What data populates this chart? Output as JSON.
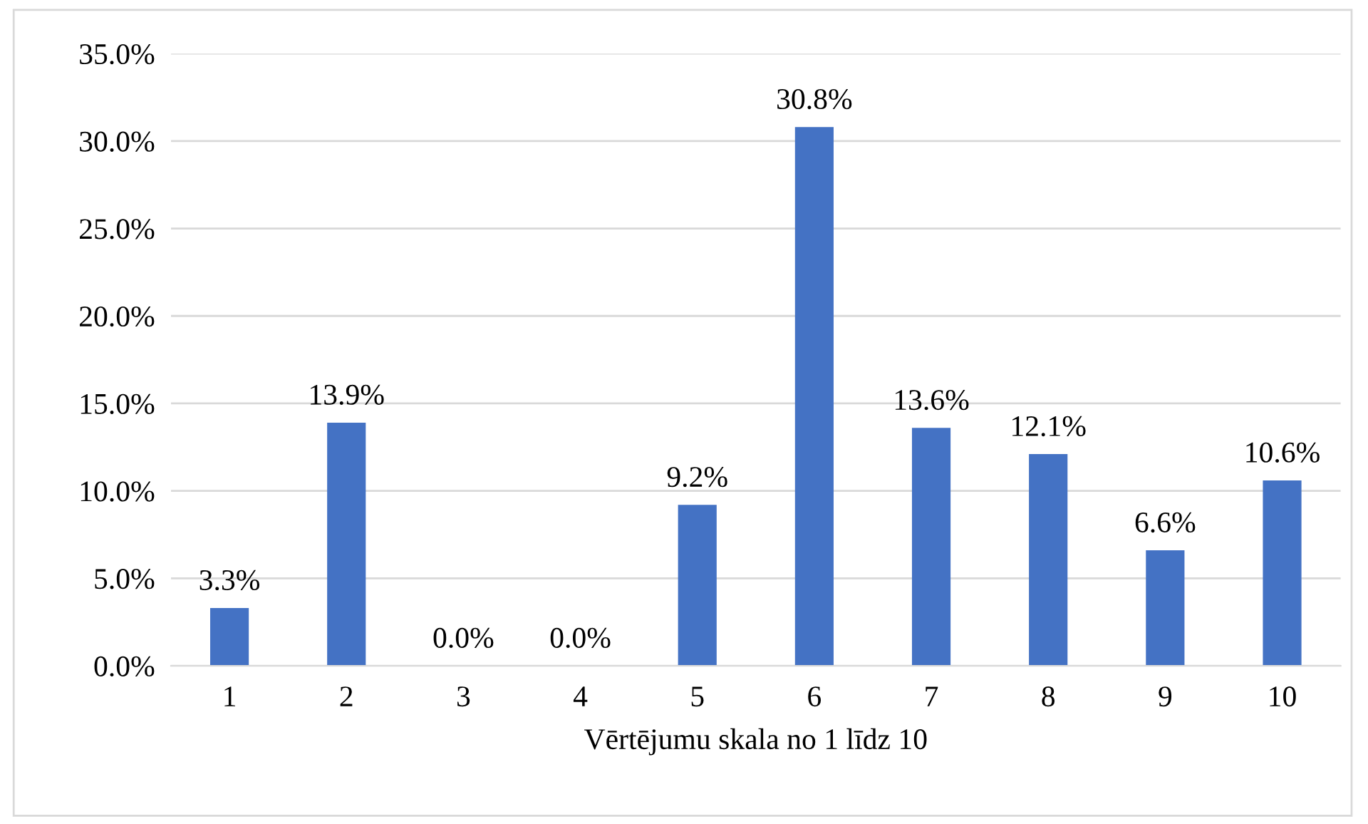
{
  "chart_data": {
    "type": "bar",
    "xlabel": "Vērtējumu skala no 1 līdz 10",
    "categories": [
      "1",
      "2",
      "3",
      "4",
      "5",
      "6",
      "7",
      "8",
      "9",
      "10"
    ],
    "values": [
      3.3,
      13.9,
      0.0,
      0.0,
      9.2,
      30.8,
      13.6,
      12.1,
      6.6,
      10.6
    ],
    "value_labels": [
      "3.3%",
      "13.9%",
      "0.0%",
      "0.0%",
      "9.2%",
      "30.8%",
      "13.6%",
      "12.1%",
      "6.6%",
      "10.6%"
    ],
    "color": "#4472c4",
    "ylim": [
      0,
      35
    ],
    "yticks": [
      {
        "value": 0,
        "label": "0.0%"
      },
      {
        "value": 5,
        "label": "5.0%"
      },
      {
        "value": 10,
        "label": "10.0%"
      },
      {
        "value": 15,
        "label": "15.0%"
      },
      {
        "value": 20,
        "label": "20.0%"
      },
      {
        "value": 25,
        "label": "25.0%"
      },
      {
        "value": 30,
        "label": "30.0%"
      },
      {
        "value": 35,
        "label": "35.0%"
      }
    ],
    "grid": "y",
    "legend": false
  }
}
